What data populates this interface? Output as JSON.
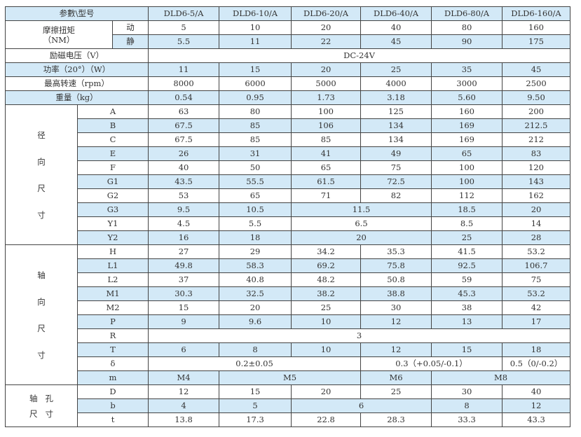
{
  "header": {
    "label": "参數\\型号",
    "models": [
      "DLD6-5/A",
      "DLD6-10/A",
      "DLD6-20/A",
      "DLD6-40/A",
      "DLD6-80/A",
      "DLD6-160/A"
    ]
  },
  "torque": {
    "label": "摩擦扭矩\n（NM）",
    "rows": [
      {
        "label": "动",
        "cells": [
          {
            "v": "5"
          },
          {
            "v": "10"
          },
          {
            "v": "20"
          },
          {
            "v": "40"
          },
          {
            "v": "80"
          },
          {
            "v": "160"
          }
        ]
      },
      {
        "label": "静",
        "cells": [
          {
            "v": "5.5"
          },
          {
            "v": "11"
          },
          {
            "v": "22"
          },
          {
            "v": "45"
          },
          {
            "v": "90"
          },
          {
            "v": "175"
          }
        ]
      }
    ]
  },
  "general": [
    {
      "label": "励磁电压（V）",
      "cells": [
        {
          "v": "DC-24V",
          "span": 6
        }
      ]
    },
    {
      "label": "功率（20°）（W）",
      "cells": [
        {
          "v": "11"
        },
        {
          "v": "15"
        },
        {
          "v": "20"
        },
        {
          "v": "25"
        },
        {
          "v": "35"
        },
        {
          "v": "45"
        }
      ]
    },
    {
      "label": "最高转速（rpm）",
      "cells": [
        {
          "v": "8000"
        },
        {
          "v": "6000"
        },
        {
          "v": "5000"
        },
        {
          "v": "4000"
        },
        {
          "v": "3000"
        },
        {
          "v": "2500"
        }
      ]
    },
    {
      "label": "重量（kg）",
      "cells": [
        {
          "v": "0.54"
        },
        {
          "v": "0.95"
        },
        {
          "v": "1.73"
        },
        {
          "v": "3.18"
        },
        {
          "v": "5.60"
        },
        {
          "v": "9.50"
        }
      ]
    }
  ],
  "groups": [
    {
      "label": "径\n向\n尺\n寸",
      "rows": [
        {
          "label": "A",
          "cells": [
            {
              "v": "63"
            },
            {
              "v": "80"
            },
            {
              "v": "100"
            },
            {
              "v": "125"
            },
            {
              "v": "160"
            },
            {
              "v": "200"
            }
          ]
        },
        {
          "label": "B",
          "cells": [
            {
              "v": "67.5"
            },
            {
              "v": "85"
            },
            {
              "v": "106"
            },
            {
              "v": "134"
            },
            {
              "v": "169"
            },
            {
              "v": "212.5"
            }
          ]
        },
        {
          "label": "C",
          "cells": [
            {
              "v": "67.5"
            },
            {
              "v": "85"
            },
            {
              "v": "85"
            },
            {
              "v": "134"
            },
            {
              "v": "169"
            },
            {
              "v": "212"
            }
          ]
        },
        {
          "label": "E",
          "cells": [
            {
              "v": "26"
            },
            {
              "v": "31"
            },
            {
              "v": "41"
            },
            {
              "v": "49"
            },
            {
              "v": "65"
            },
            {
              "v": "83"
            }
          ]
        },
        {
          "label": "F",
          "cells": [
            {
              "v": "40"
            },
            {
              "v": "50"
            },
            {
              "v": "65"
            },
            {
              "v": "75"
            },
            {
              "v": "100"
            },
            {
              "v": "120"
            }
          ]
        },
        {
          "label": "G1",
          "cells": [
            {
              "v": "43.5"
            },
            {
              "v": "55.5"
            },
            {
              "v": "61.5"
            },
            {
              "v": "72.5"
            },
            {
              "v": "100"
            },
            {
              "v": "143"
            }
          ]
        },
        {
          "label": "G2",
          "cells": [
            {
              "v": "53"
            },
            {
              "v": "65"
            },
            {
              "v": "71"
            },
            {
              "v": "82"
            },
            {
              "v": "112"
            },
            {
              "v": "162"
            }
          ]
        },
        {
          "label": "G3",
          "cells": [
            {
              "v": "9.5"
            },
            {
              "v": "10.5"
            },
            {
              "v": "11.5",
              "span": 2
            },
            {
              "v": "18.5"
            },
            {
              "v": "20"
            }
          ]
        },
        {
          "label": "Y1",
          "cells": [
            {
              "v": "4.5"
            },
            {
              "v": "5.5"
            },
            {
              "v": "6.5",
              "span": 2
            },
            {
              "v": "8.5"
            },
            {
              "v": "14"
            }
          ]
        },
        {
          "label": "Y2",
          "cells": [
            {
              "v": "16"
            },
            {
              "v": "18"
            },
            {
              "v": "20",
              "span": 2
            },
            {
              "v": "25"
            },
            {
              "v": "28"
            }
          ]
        }
      ]
    },
    {
      "label": "轴\n向\n尺\n寸",
      "rows": [
        {
          "label": "H",
          "cells": [
            {
              "v": "27"
            },
            {
              "v": "29"
            },
            {
              "v": "34.2"
            },
            {
              "v": "35.3"
            },
            {
              "v": "41.5"
            },
            {
              "v": "53.2"
            }
          ]
        },
        {
          "label": "L1",
          "cells": [
            {
              "v": "49.8"
            },
            {
              "v": "58.3"
            },
            {
              "v": "69.2"
            },
            {
              "v": "75.8"
            },
            {
              "v": "92.5"
            },
            {
              "v": "106.7"
            }
          ]
        },
        {
          "label": "L2",
          "cells": [
            {
              "v": "37"
            },
            {
              "v": "40.8"
            },
            {
              "v": "48.2"
            },
            {
              "v": "50.8"
            },
            {
              "v": "59"
            },
            {
              "v": "75"
            }
          ]
        },
        {
          "label": "M1",
          "cells": [
            {
              "v": "30.3"
            },
            {
              "v": "32.5"
            },
            {
              "v": "38.2"
            },
            {
              "v": "38.8"
            },
            {
              "v": "45.3"
            },
            {
              "v": "53.2"
            }
          ]
        },
        {
          "label": "M2",
          "cells": [
            {
              "v": "15"
            },
            {
              "v": "20"
            },
            {
              "v": "25"
            },
            {
              "v": "30"
            },
            {
              "v": "38"
            },
            {
              "v": "42"
            }
          ]
        },
        {
          "label": "P",
          "cells": [
            {
              "v": "9"
            },
            {
              "v": "9.6"
            },
            {
              "v": "10"
            },
            {
              "v": "12"
            },
            {
              "v": "13"
            },
            {
              "v": "17"
            }
          ]
        },
        {
          "label": "R",
          "cells": [
            {
              "v": "3",
              "span": 6
            }
          ]
        },
        {
          "label": "T",
          "cells": [
            {
              "v": "6"
            },
            {
              "v": "8"
            },
            {
              "v": "10"
            },
            {
              "v": "12"
            },
            {
              "v": "15"
            },
            {
              "v": "18"
            }
          ]
        },
        {
          "label": "δ",
          "cells": [
            {
              "v": "0.2±0.05",
              "span": 3
            },
            {
              "v": "0.3（+0.05/-0.1）",
              "span": 2
            },
            {
              "v": "0.5（0/-0.2）"
            }
          ]
        },
        {
          "label": "m",
          "cells": [
            {
              "v": "M4"
            },
            {
              "v": "M5",
              "span": 2
            },
            {
              "v": "M6"
            },
            {
              "v": "M8",
              "span": 2
            }
          ]
        }
      ]
    },
    {
      "label": "轴   孔\n尺   寸",
      "rows": [
        {
          "label": "D",
          "cells": [
            {
              "v": "12"
            },
            {
              "v": "15"
            },
            {
              "v": "20"
            },
            {
              "v": "25"
            },
            {
              "v": "30"
            },
            {
              "v": "40"
            }
          ]
        },
        {
          "label": "b",
          "cells": [
            {
              "v": "4"
            },
            {
              "v": "5"
            },
            {
              "v": "6",
              "span": 2
            },
            {
              "v": "8"
            },
            {
              "v": "12"
            }
          ]
        },
        {
          "label": "t",
          "cells": [
            {
              "v": "13.8"
            },
            {
              "v": "17.3"
            },
            {
              "v": "22.8"
            },
            {
              "v": "28.3"
            },
            {
              "v": "33.3"
            },
            {
              "v": "43.3"
            }
          ]
        }
      ]
    }
  ],
  "colors": {
    "stripe": "#d3e9f7",
    "border": "#444444"
  }
}
